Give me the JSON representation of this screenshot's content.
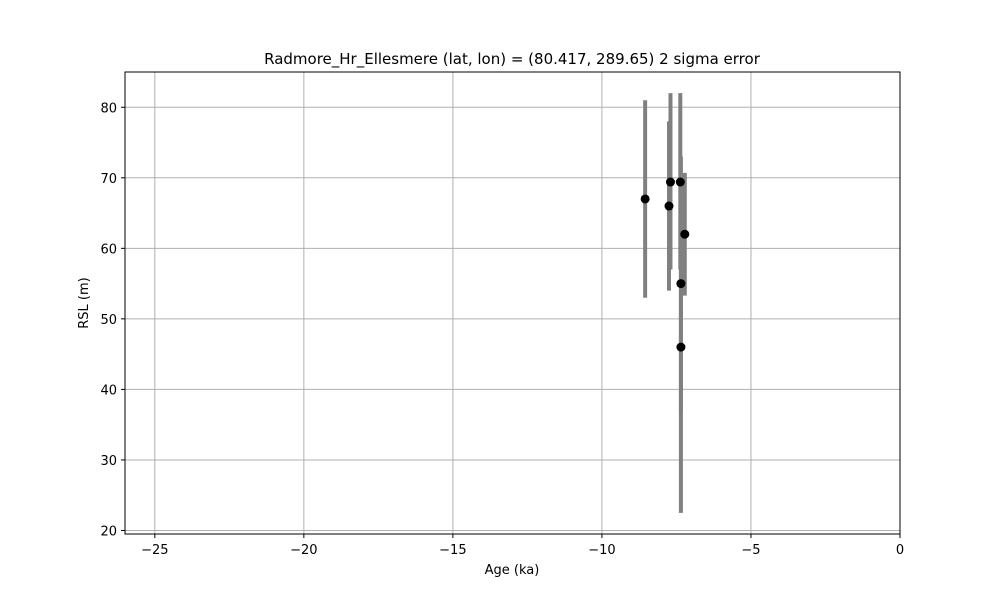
{
  "chart_data": {
    "type": "scatter",
    "title": "Radmore_Hr_Ellesmere (lat, lon) = (80.417, 289.65)  2 sigma error",
    "xlabel": "Age (ka)",
    "ylabel": "RSL (m)",
    "xlim": [
      -26,
      0
    ],
    "ylim": [
      19.5,
      85
    ],
    "xticks": [
      -25,
      -20,
      -15,
      -10,
      -5,
      0
    ],
    "xtick_labels": [
      "−25",
      "−20",
      "−15",
      "−10",
      "−5",
      "0"
    ],
    "yticks": [
      20,
      30,
      40,
      50,
      60,
      70,
      80
    ],
    "ytick_labels": [
      "20",
      "30",
      "40",
      "50",
      "60",
      "70",
      "80"
    ],
    "grid": true,
    "marker_color": "#000000",
    "errorbar_color": "#808080",
    "points": [
      {
        "x": -8.55,
        "y": 67.0,
        "ymin": 53.0,
        "ymax": 81.0
      },
      {
        "x": -7.75,
        "y": 66.0,
        "ymin": 54.0,
        "ymax": 78.0
      },
      {
        "x": -7.7,
        "y": 69.4,
        "ymin": 57.0,
        "ymax": 82.0
      },
      {
        "x": -7.37,
        "y": 69.4,
        "ymin": 57.0,
        "ymax": 82.0
      },
      {
        "x": -7.35,
        "y": 55.0,
        "ymin": 37.0,
        "ymax": 73.0
      },
      {
        "x": -7.35,
        "y": 46.0,
        "ymin": 22.5,
        "ymax": 69.5
      },
      {
        "x": -7.22,
        "y": 62.0,
        "ymin": 53.3,
        "ymax": 70.7
      }
    ]
  }
}
